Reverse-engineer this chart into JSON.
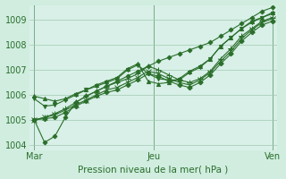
{
  "title": "",
  "xlabel": "Pression niveau de la mer( hPa )",
  "ylabel": "",
  "bg_color": "#d0ede0",
  "plot_bg_color": "#d8f0e8",
  "grid_color": "#a0c8b0",
  "line_color": "#2a6e2a",
  "xtick_labels": [
    "Mar",
    "Jeu",
    "Ven"
  ],
  "xtick_positions": [
    0.0,
    0.5,
    1.0
  ],
  "ylim": [
    1003.8,
    1009.6
  ],
  "yticks": [
    1004,
    1005,
    1006,
    1007,
    1008,
    1009
  ],
  "series": [
    [
      1005.0,
      1004.1,
      1004.35,
      1005.1,
      1005.7,
      1005.95,
      1006.15,
      1006.35,
      1006.55,
      1006.75,
      1006.95,
      1007.15,
      1007.35,
      1007.5,
      1007.65,
      1007.8,
      1007.95,
      1008.1,
      1008.35,
      1008.6,
      1008.85,
      1009.1,
      1009.35,
      1009.5
    ],
    [
      1005.95,
      1005.85,
      1005.75,
      1005.85,
      1006.05,
      1006.2,
      1006.4,
      1006.55,
      1006.7,
      1007.05,
      1007.25,
      1006.55,
      1006.45,
      1006.5,
      1006.65,
      1006.95,
      1007.15,
      1007.45,
      1007.95,
      1008.3,
      1008.65,
      1008.95,
      1009.1,
      1009.3
    ],
    [
      1005.85,
      1005.55,
      1005.6,
      1005.8,
      1006.0,
      1006.2,
      1006.35,
      1006.5,
      1006.65,
      1007.0,
      1007.2,
      1006.85,
      1006.65,
      1006.6,
      1006.6,
      1006.9,
      1007.1,
      1007.45,
      1007.95,
      1008.3,
      1008.65,
      1008.9,
      1009.1,
      1009.25
    ],
    [
      1005.0,
      1005.1,
      1005.25,
      1005.45,
      1005.7,
      1005.95,
      1006.15,
      1006.35,
      1006.5,
      1006.65,
      1006.85,
      1007.15,
      1007.0,
      1006.8,
      1006.6,
      1006.5,
      1006.65,
      1006.95,
      1007.45,
      1007.85,
      1008.35,
      1008.65,
      1008.95,
      1009.1
    ],
    [
      1005.0,
      1005.1,
      1005.2,
      1005.4,
      1005.6,
      1005.8,
      1006.0,
      1006.2,
      1006.3,
      1006.5,
      1006.7,
      1006.95,
      1006.85,
      1006.65,
      1006.5,
      1006.4,
      1006.6,
      1006.9,
      1007.35,
      1007.75,
      1008.25,
      1008.6,
      1008.9,
      1009.05
    ],
    [
      1005.0,
      1005.05,
      1005.1,
      1005.3,
      1005.55,
      1005.75,
      1005.95,
      1006.1,
      1006.2,
      1006.4,
      1006.6,
      1006.85,
      1006.75,
      1006.55,
      1006.4,
      1006.3,
      1006.5,
      1006.8,
      1007.25,
      1007.65,
      1008.15,
      1008.5,
      1008.8,
      1008.95
    ]
  ],
  "markers": [
    "D",
    "^",
    "v",
    "+",
    "x",
    "P"
  ],
  "marker_sizes": [
    2.5,
    3,
    3,
    4,
    4,
    3
  ]
}
